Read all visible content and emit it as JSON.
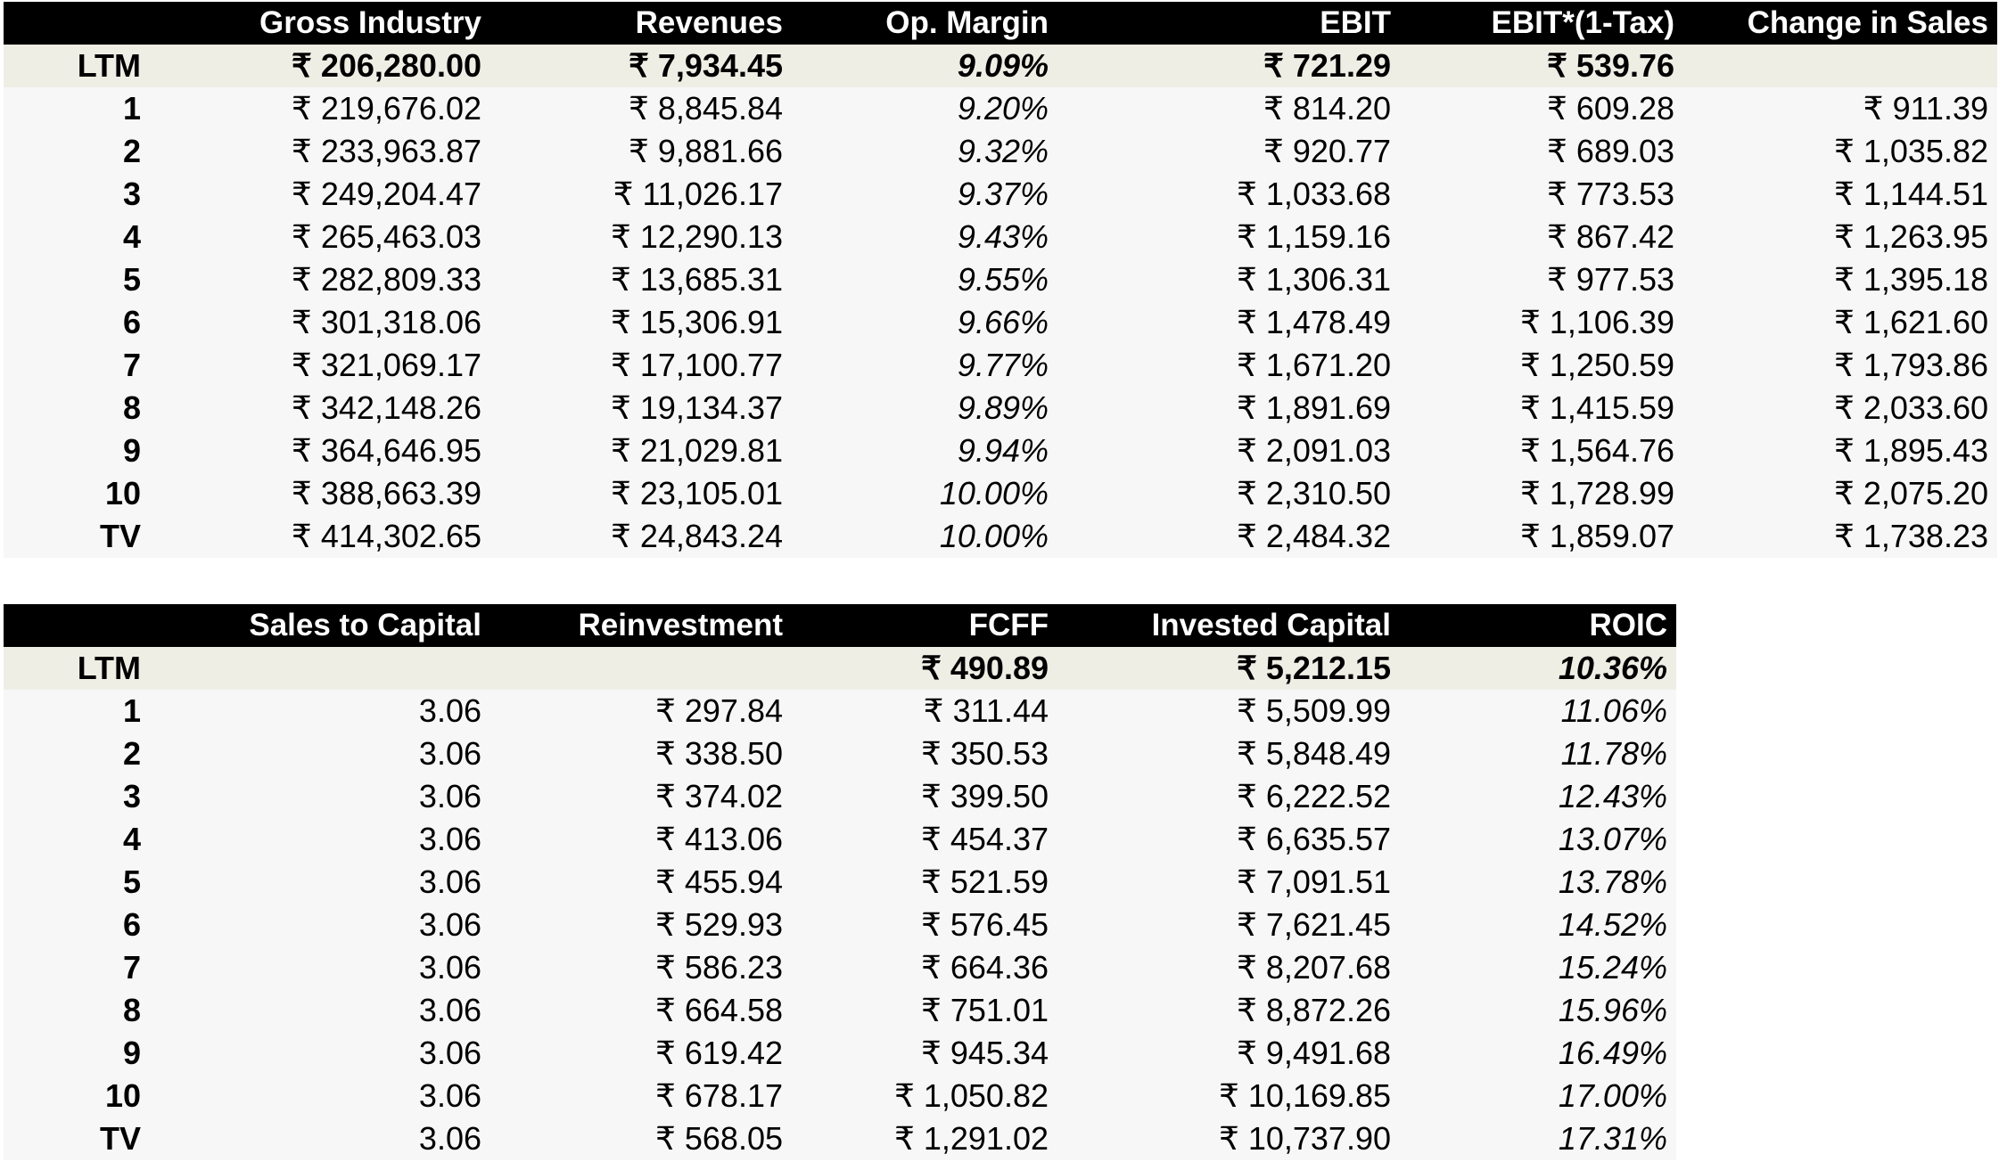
{
  "table1": {
    "headers": [
      "",
      "Gross Industry",
      "Revenues",
      "Op. Margin",
      "EBIT",
      "EBIT*(1-Tax)",
      "Change in Sales"
    ],
    "rows": [
      [
        "LTM",
        "₹ 206,280.00",
        "₹ 7,934.45",
        "9.09%",
        "₹ 721.29",
        "₹ 539.76",
        ""
      ],
      [
        "1",
        "₹ 219,676.02",
        "₹ 8,845.84",
        "9.20%",
        "₹ 814.20",
        "₹ 609.28",
        "₹ 911.39"
      ],
      [
        "2",
        "₹ 233,963.87",
        "₹ 9,881.66",
        "9.32%",
        "₹ 920.77",
        "₹ 689.03",
        "₹ 1,035.82"
      ],
      [
        "3",
        "₹ 249,204.47",
        "₹ 11,026.17",
        "9.37%",
        "₹ 1,033.68",
        "₹ 773.53",
        "₹ 1,144.51"
      ],
      [
        "4",
        "₹ 265,463.03",
        "₹ 12,290.13",
        "9.43%",
        "₹ 1,159.16",
        "₹ 867.42",
        "₹ 1,263.95"
      ],
      [
        "5",
        "₹ 282,809.33",
        "₹ 13,685.31",
        "9.55%",
        "₹ 1,306.31",
        "₹ 977.53",
        "₹ 1,395.18"
      ],
      [
        "6",
        "₹ 301,318.06",
        "₹ 15,306.91",
        "9.66%",
        "₹ 1,478.49",
        "₹ 1,106.39",
        "₹ 1,621.60"
      ],
      [
        "7",
        "₹ 321,069.17",
        "₹ 17,100.77",
        "9.77%",
        "₹ 1,671.20",
        "₹ 1,250.59",
        "₹ 1,793.86"
      ],
      [
        "8",
        "₹ 342,148.26",
        "₹ 19,134.37",
        "9.89%",
        "₹ 1,891.69",
        "₹ 1,415.59",
        "₹ 2,033.60"
      ],
      [
        "9",
        "₹ 364,646.95",
        "₹ 21,029.81",
        "9.94%",
        "₹ 2,091.03",
        "₹ 1,564.76",
        "₹ 1,895.43"
      ],
      [
        "10",
        "₹ 388,663.39",
        "₹ 23,105.01",
        "10.00%",
        "₹ 2,310.50",
        "₹ 1,728.99",
        "₹ 2,075.20"
      ],
      [
        "TV",
        "₹ 414,302.65",
        "₹ 24,843.24",
        "10.00%",
        "₹ 2,484.32",
        "₹ 1,859.07",
        "₹ 1,738.23"
      ]
    ]
  },
  "table2": {
    "headers": [
      "",
      "Sales to Capital",
      "Reinvestment",
      "FCFF",
      "Invested Capital",
      "ROIC"
    ],
    "rows": [
      [
        "LTM",
        "",
        "",
        "₹ 490.89",
        "₹ 5,212.15",
        "10.36%"
      ],
      [
        "1",
        "3.06",
        "₹ 297.84",
        "₹ 311.44",
        "₹ 5,509.99",
        "11.06%"
      ],
      [
        "2",
        "3.06",
        "₹ 338.50",
        "₹ 350.53",
        "₹ 5,848.49",
        "11.78%"
      ],
      [
        "3",
        "3.06",
        "₹ 374.02",
        "₹ 399.50",
        "₹ 6,222.52",
        "12.43%"
      ],
      [
        "4",
        "3.06",
        "₹ 413.06",
        "₹ 454.37",
        "₹ 6,635.57",
        "13.07%"
      ],
      [
        "5",
        "3.06",
        "₹ 455.94",
        "₹ 521.59",
        "₹ 7,091.51",
        "13.78%"
      ],
      [
        "6",
        "3.06",
        "₹ 529.93",
        "₹ 576.45",
        "₹ 7,621.45",
        "14.52%"
      ],
      [
        "7",
        "3.06",
        "₹ 586.23",
        "₹ 664.36",
        "₹ 8,207.68",
        "15.24%"
      ],
      [
        "8",
        "3.06",
        "₹ 664.58",
        "₹ 751.01",
        "₹ 8,872.26",
        "15.96%"
      ],
      [
        "9",
        "3.06",
        "₹ 619.42",
        "₹ 945.34",
        "₹ 9,491.68",
        "16.49%"
      ],
      [
        "10",
        "3.06",
        "₹ 678.17",
        "₹ 1,050.82",
        "₹ 10,169.85",
        "17.00%"
      ],
      [
        "TV",
        "3.06",
        "₹ 568.05",
        "₹ 1,291.02",
        "₹ 10,737.90",
        "17.31%"
      ]
    ]
  },
  "colors": {
    "header_bg": "#000000",
    "header_text": "#ffffff",
    "ltm_row_bg": "#efeee5",
    "data_row_bg": "#f7f7f7"
  }
}
